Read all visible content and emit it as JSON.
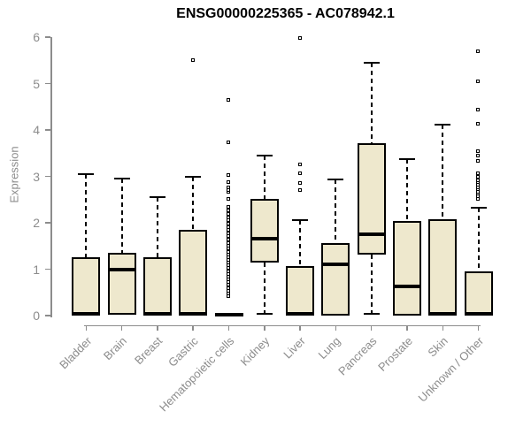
{
  "chart": {
    "title": "ENSG00000225365 - AC078942.1",
    "ylabel": "Expression"
  },
  "colors": {
    "box_fill": "#EEE8CD",
    "box_border": "#000000",
    "median_color": "#000000",
    "whisker_color": "#000000",
    "axis_color": "#8C8C8C",
    "title_color": "#000000",
    "background": "#FFFFFF"
  },
  "chart_data": {
    "type": "boxplot",
    "title": "ENSG00000225365 - AC078942.1",
    "xlabel": "",
    "ylabel": "Expression",
    "ylim": [
      0,
      6
    ],
    "yticks": [
      0,
      1,
      2,
      3,
      4,
      5,
      6
    ],
    "grid": false,
    "legend": "none",
    "categories": [
      "Bladder",
      "Brain",
      "Breast",
      "Gastric",
      "Hematopoietic cells",
      "Kidney",
      "Liver",
      "Lung",
      "Pancreas",
      "Prostate",
      "Skin",
      "Unknown / Other"
    ],
    "series": [
      {
        "name": "Bladder",
        "whisker_low": 0,
        "q1": 0,
        "median": 0.04,
        "q3": 1.25,
        "whisker_high": 3.05,
        "outliers": []
      },
      {
        "name": "Brain",
        "whisker_low": 0.02,
        "q1": 0.02,
        "median": 1.0,
        "q3": 1.35,
        "whisker_high": 2.95,
        "outliers": []
      },
      {
        "name": "Breast",
        "whisker_low": 0,
        "q1": 0,
        "median": 0.04,
        "q3": 1.25,
        "whisker_high": 2.55,
        "outliers": []
      },
      {
        "name": "Gastric",
        "whisker_low": 0,
        "q1": 0,
        "median": 0.04,
        "q3": 1.85,
        "whisker_high": 3.0,
        "outliers": [
          5.5
        ]
      },
      {
        "name": "Hematopoietic cells",
        "whisker_low": 0,
        "q1": 0,
        "median": 0.02,
        "q3": 0.05,
        "whisker_high": 0.05,
        "outliers": [
          0.41,
          0.47,
          0.53,
          0.59,
          0.65,
          0.71,
          0.77,
          0.83,
          0.89,
          0.95,
          1.01,
          1.07,
          1.13,
          1.19,
          1.25,
          1.31,
          1.37,
          1.43,
          1.49,
          1.55,
          1.62,
          1.7,
          1.76,
          1.83,
          1.9,
          1.97,
          2.04,
          2.11,
          2.18,
          2.25,
          2.33,
          2.51,
          2.65,
          2.7,
          2.76,
          2.86,
          3.02,
          3.73,
          4.63
        ]
      },
      {
        "name": "Kidney",
        "whisker_low": 0.04,
        "q1": 1.15,
        "median": 1.65,
        "q3": 2.52,
        "whisker_high": 3.45,
        "outliers": []
      },
      {
        "name": "Liver",
        "whisker_low": 0,
        "q1": 0,
        "median": 0.04,
        "q3": 1.06,
        "whisker_high": 2.05,
        "outliers": [
          2.7,
          2.84,
          3.05,
          3.25,
          5.98
        ]
      },
      {
        "name": "Lung",
        "whisker_low": 0,
        "q1": 0,
        "median": 1.1,
        "q3": 1.57,
        "whisker_high": 2.93,
        "outliers": []
      },
      {
        "name": "Pancreas",
        "whisker_low": 0.03,
        "q1": 1.32,
        "median": 1.76,
        "q3": 3.72,
        "whisker_high": 5.45,
        "outliers": []
      },
      {
        "name": "Prostate",
        "whisker_low": 0,
        "q1": 0,
        "median": 0.62,
        "q3": 2.04,
        "whisker_high": 3.38,
        "outliers": []
      },
      {
        "name": "Skin",
        "whisker_low": 0,
        "q1": 0,
        "median": 0.04,
        "q3": 2.07,
        "whisker_high": 4.12,
        "outliers": []
      },
      {
        "name": "Unknown / Other",
        "whisker_low": 0,
        "q1": 0,
        "median": 0.04,
        "q3": 0.95,
        "whisker_high": 2.32,
        "outliers": [
          2.51,
          2.56,
          2.61,
          2.66,
          2.71,
          2.76,
          2.81,
          2.86,
          2.9,
          2.99,
          3.05,
          3.32,
          3.44,
          3.54,
          4.13,
          4.43,
          5.04,
          5.69
        ]
      }
    ]
  }
}
